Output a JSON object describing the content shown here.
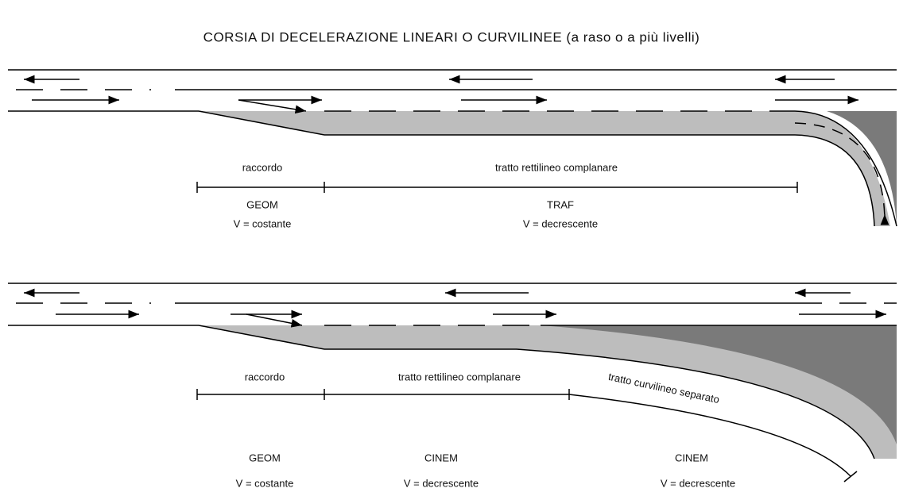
{
  "title": "CORSIA DI DECELERAZIONE LINEARI O CURVILINEE (a raso o a più livelli)",
  "diagrams": [
    {
      "segments": [
        {
          "label": "raccordo",
          "type": "GEOM",
          "speed": "V = costante"
        },
        {
          "label": "tratto rettilineo complanare",
          "type": "TRAF",
          "speed": "V = decrescente"
        }
      ]
    },
    {
      "segments": [
        {
          "label": "raccordo",
          "type": "GEOM",
          "speed": "V = costante"
        },
        {
          "label": "tratto rettilineo complanare",
          "type": "CINEM",
          "speed": "V = decrescente"
        },
        {
          "label": "tratto curvilineo separato",
          "type": "CINEM",
          "speed": "V = decrescente"
        }
      ]
    }
  ]
}
